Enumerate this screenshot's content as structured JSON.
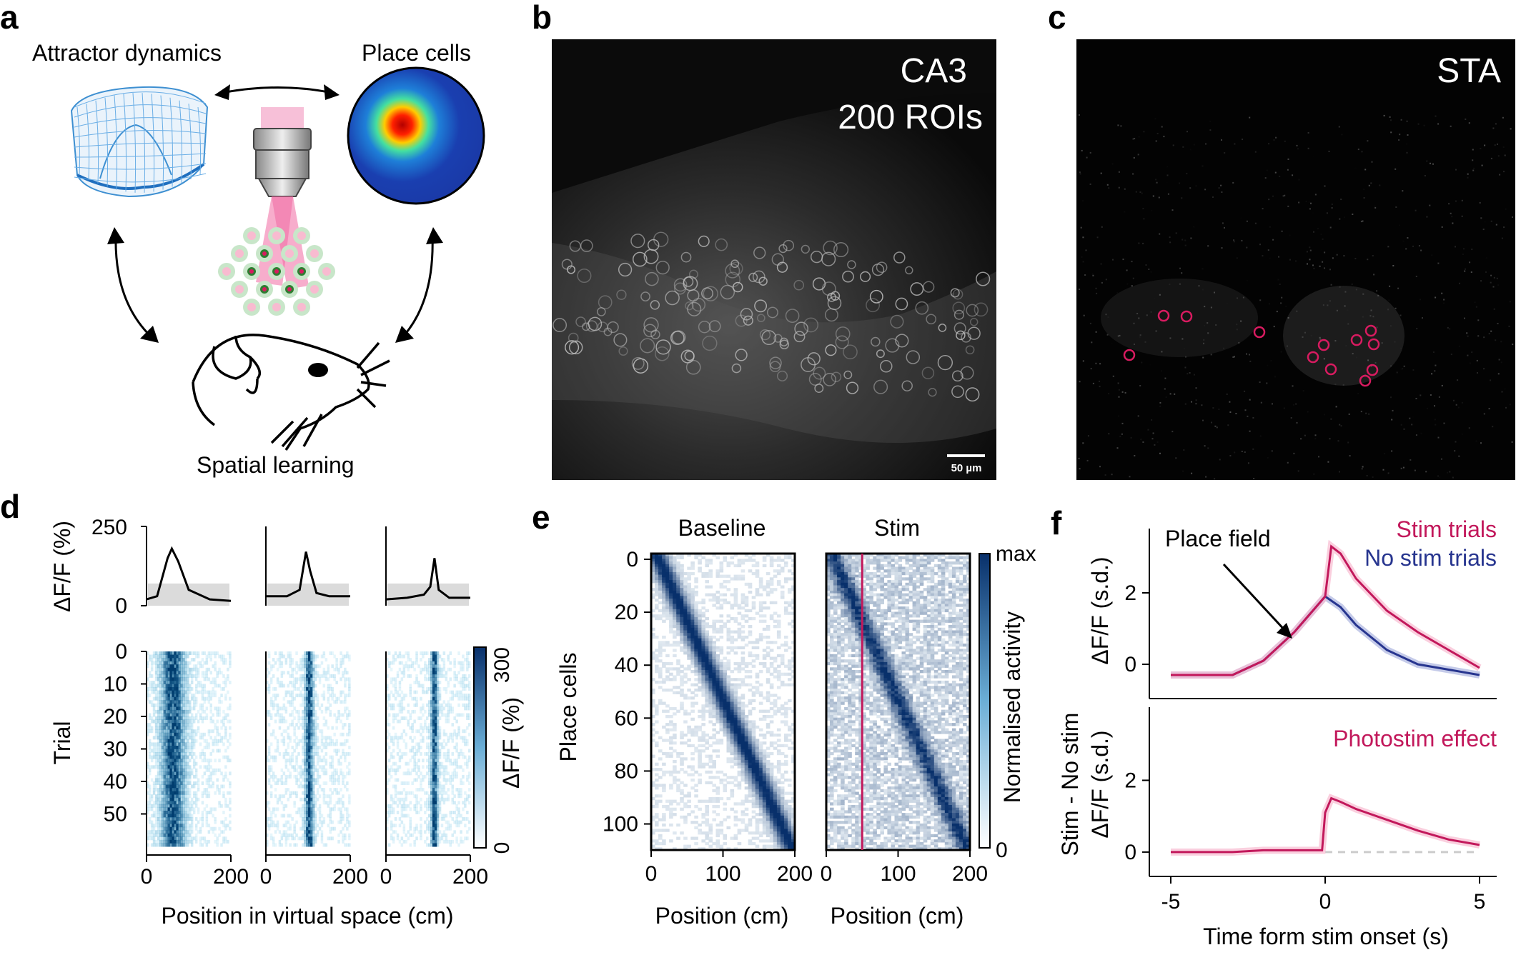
{
  "panels": {
    "a": "a",
    "b": "b",
    "c": "c",
    "d": "d",
    "e": "e",
    "f": "f"
  },
  "panel_a": {
    "attractor_label": "Attractor dynamics",
    "place_cells_label": "Place cells",
    "spatial_learning_label": "Spatial learning"
  },
  "panel_b": {
    "region": "CA3",
    "rois": "200 ROIs",
    "scalebar": "50 µm"
  },
  "panel_c": {
    "title": "STA"
  },
  "panel_d": {
    "ylabel_top": "ΔF/F (%)",
    "ylabel_bottom": "Trial",
    "xlabel": "Position in virtual space (cm)",
    "colorbar_label": "ΔF/F (%)",
    "top_yticks": [
      "250",
      "0"
    ],
    "trial_ticks": [
      "0",
      "10",
      "20",
      "30",
      "40",
      "50"
    ],
    "x_ticks": [
      "0",
      "200"
    ],
    "colorbar_ticks": [
      "300",
      "0"
    ]
  },
  "panel_e": {
    "title_left": "Baseline",
    "title_right": "Stim",
    "ylabel": "Place cells",
    "xlabel": "Position (cm)",
    "yticks": [
      "0",
      "20",
      "40",
      "60",
      "80",
      "100"
    ],
    "xticks": [
      "0",
      "100",
      "200"
    ],
    "colorbar_label": "Normalised activity",
    "colorbar_max": "max",
    "colorbar_min": "0"
  },
  "panel_f": {
    "legend_stim": "Stim trials",
    "legend_nostim": "No stim trials",
    "annotation": "Place field",
    "ylabel_top": "ΔF/F (s.d.)",
    "ylabel_bottom_1": "Stim - No stim",
    "ylabel_bottom_2": "ΔF/F (s.d.)",
    "effect_label": "Photostim effect",
    "xlabel": "Time form stim onset (s)",
    "yticks": [
      "0",
      "2"
    ],
    "xticks": [
      "-5",
      "0",
      "5"
    ]
  },
  "colors": {
    "stim": "#c2185b",
    "nostim": "#27358f",
    "heat": "#08306b"
  },
  "chart_data": [
    {
      "type": "line",
      "title": "",
      "xlabel": "Time form stim onset (s)",
      "ylabel": "ΔF/F (s.d.)",
      "xlim": [
        -5,
        5
      ],
      "ylim": [
        -0.4,
        3.8
      ],
      "series": [
        {
          "name": "Stim trials",
          "x": [
            -5,
            -4,
            -3,
            -2,
            -1,
            -0.5,
            0,
            0.2,
            0.5,
            1,
            2,
            3,
            4,
            5
          ],
          "values": [
            -0.3,
            -0.3,
            -0.3,
            0.1,
            0.9,
            1.4,
            1.9,
            3.3,
            3.1,
            2.4,
            1.5,
            0.9,
            0.4,
            -0.1
          ]
        },
        {
          "name": "No stim trials",
          "x": [
            -5,
            -4,
            -3,
            -2,
            -1,
            -0.5,
            0,
            0.5,
            1,
            2,
            3,
            4,
            5
          ],
          "values": [
            -0.3,
            -0.3,
            -0.3,
            0.1,
            0.9,
            1.4,
            1.9,
            1.6,
            1.1,
            0.4,
            0.0,
            -0.15,
            -0.3
          ]
        }
      ]
    },
    {
      "type": "line",
      "title": "",
      "xlabel": "Time form stim onset (s)",
      "ylabel": "Stim - No stim ΔF/F (s.d.)",
      "xlim": [
        -5,
        5
      ],
      "ylim": [
        -0.4,
        3.8
      ],
      "series": [
        {
          "name": "Photostim effect",
          "x": [
            -5,
            -4,
            -3,
            -2,
            -1,
            -0.1,
            0,
            0.2,
            0.5,
            1,
            2,
            3,
            4,
            5
          ],
          "values": [
            0,
            0,
            0,
            0.05,
            0.05,
            0.05,
            1.1,
            1.5,
            1.4,
            1.2,
            0.9,
            0.6,
            0.35,
            0.2
          ]
        }
      ]
    },
    {
      "type": "line",
      "title": "",
      "ylabel": "ΔF/F (%)",
      "ylim": [
        0,
        250
      ],
      "series": [
        {
          "name": "",
          "x": [
            0,
            25,
            50,
            60,
            75,
            100,
            150,
            200
          ],
          "values": [
            20,
            30,
            150,
            180,
            140,
            50,
            20,
            15
          ]
        },
        {
          "name": "",
          "x": [
            0,
            50,
            80,
            95,
            105,
            120,
            150,
            200
          ],
          "values": [
            30,
            30,
            50,
            170,
            110,
            40,
            30,
            30
          ]
        },
        {
          "name": "",
          "x": [
            0,
            50,
            90,
            105,
            115,
            125,
            150,
            200
          ],
          "values": [
            20,
            25,
            35,
            60,
            150,
            50,
            25,
            25
          ]
        }
      ]
    }
  ]
}
